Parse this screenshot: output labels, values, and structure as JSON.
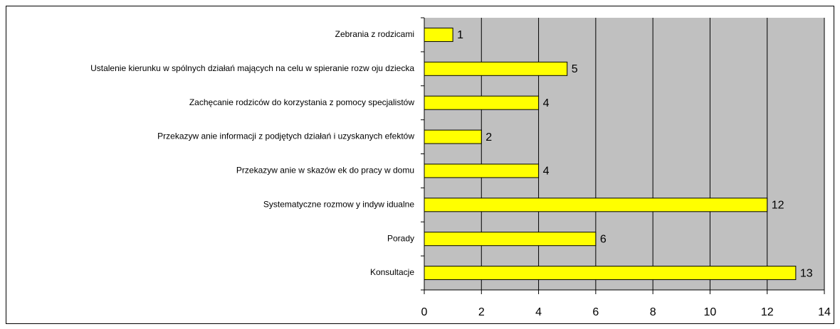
{
  "chart_data": {
    "type": "bar",
    "orientation": "horizontal",
    "categories": [
      "Zebrania z rodzicami",
      "Ustalenie kierunku w spólnych działań mających na celu w spieranie rozw oju dziecka",
      "Zachęcanie rodziców do korzystania z pomocy specjalistów",
      "Przekazyw anie informacji z podjętych działań i uzyskanych efektów",
      "Przekazyw anie w skazów ek do pracy w domu",
      "Systematyczne rozmow y indyw idualne",
      "Porady",
      "Konsultacje"
    ],
    "values": [
      1,
      5,
      4,
      2,
      4,
      12,
      6,
      13
    ],
    "color": "#ffff00",
    "xlim": [
      0,
      14
    ],
    "xticks": [
      0,
      2,
      4,
      6,
      8,
      10,
      12,
      14
    ],
    "grid": true
  }
}
